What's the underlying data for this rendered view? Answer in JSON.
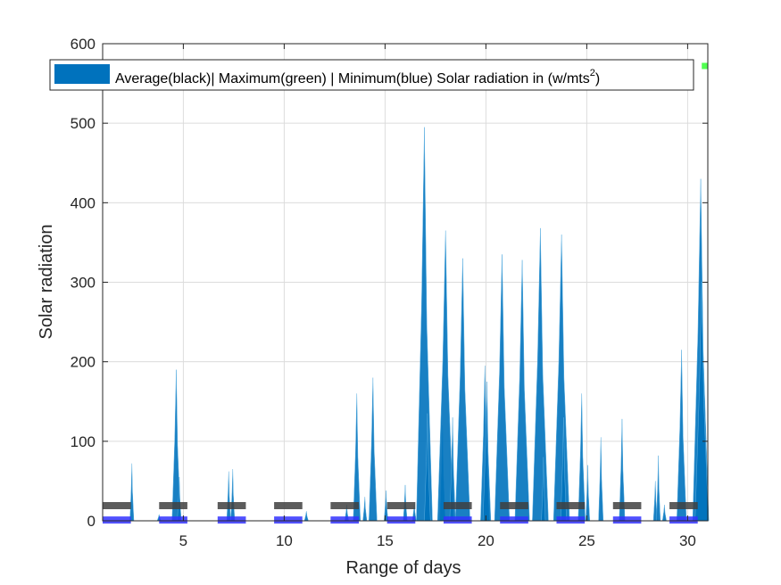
{
  "chart_data": {
    "type": "area",
    "xlabel": "Range of days",
    "ylabel": "Solar radiation",
    "xlim": [
      1,
      31
    ],
    "ylim": [
      0,
      600
    ],
    "xticks": [
      5,
      10,
      15,
      20,
      25,
      30
    ],
    "yticks": [
      0,
      100,
      200,
      300,
      400,
      500,
      600
    ],
    "grid": true,
    "legend": {
      "position": "top",
      "text_before_sup": "Average(black)| Maximum(green) | Minimum(blue) Solar radiation in (w/mts",
      "superscript": "2",
      "text_after_sup": ")"
    },
    "colors": {
      "area": "#0072BD",
      "average": "#404040",
      "maximum": "#33ff33",
      "minimum": "#3333ff"
    },
    "series": [
      {
        "name": "Solar radiation",
        "peaks": [
          {
            "x": 2.45,
            "y": 72
          },
          {
            "x": 3.8,
            "y": 8
          },
          {
            "x": 4.65,
            "y": 190
          },
          {
            "x": 4.8,
            "y": 55
          },
          {
            "x": 7.25,
            "y": 62
          },
          {
            "x": 7.45,
            "y": 65
          },
          {
            "x": 11.1,
            "y": 12
          },
          {
            "x": 13.1,
            "y": 20
          },
          {
            "x": 13.6,
            "y": 160
          },
          {
            "x": 14.0,
            "y": 30
          },
          {
            "x": 14.4,
            "y": 180
          },
          {
            "x": 15.05,
            "y": 38
          },
          {
            "x": 16.0,
            "y": 45
          },
          {
            "x": 16.45,
            "y": 22
          },
          {
            "x": 16.95,
            "y": 495
          },
          {
            "x": 17.1,
            "y": 135
          },
          {
            "x": 17.85,
            "y": 120
          },
          {
            "x": 18.0,
            "y": 365
          },
          {
            "x": 18.35,
            "y": 130
          },
          {
            "x": 18.85,
            "y": 330
          },
          {
            "x": 19.95,
            "y": 195
          },
          {
            "x": 20.05,
            "y": 175
          },
          {
            "x": 20.8,
            "y": 335
          },
          {
            "x": 21.8,
            "y": 328
          },
          {
            "x": 22.7,
            "y": 368
          },
          {
            "x": 22.85,
            "y": 80
          },
          {
            "x": 23.75,
            "y": 360
          },
          {
            "x": 23.85,
            "y": 130
          },
          {
            "x": 24.75,
            "y": 160
          },
          {
            "x": 25.05,
            "y": 70
          },
          {
            "x": 25.7,
            "y": 105
          },
          {
            "x": 26.75,
            "y": 128
          },
          {
            "x": 28.4,
            "y": 50
          },
          {
            "x": 28.55,
            "y": 82
          },
          {
            "x": 28.85,
            "y": 20
          },
          {
            "x": 29.7,
            "y": 215
          },
          {
            "x": 30.65,
            "y": 430
          },
          {
            "x": 30.7,
            "y": 300
          }
        ]
      },
      {
        "name": "Average",
        "segments": [
          {
            "x": 1.0,
            "x2": 2.4,
            "y": 19
          },
          {
            "x": 3.8,
            "x2": 5.2,
            "y": 19
          },
          {
            "x": 6.7,
            "x2": 8.1,
            "y": 19
          },
          {
            "x": 9.5,
            "x2": 10.9,
            "y": 19
          },
          {
            "x": 12.3,
            "x2": 13.7,
            "y": 19
          },
          {
            "x": 15.1,
            "x2": 16.5,
            "y": 19
          },
          {
            "x": 17.9,
            "x2": 19.3,
            "y": 19
          },
          {
            "x": 20.7,
            "x2": 22.1,
            "y": 19
          },
          {
            "x": 23.5,
            "x2": 24.9,
            "y": 19
          },
          {
            "x": 26.3,
            "x2": 27.7,
            "y": 19
          },
          {
            "x": 29.1,
            "x2": 30.5,
            "y": 19
          }
        ]
      },
      {
        "name": "Minimum",
        "segments": [
          {
            "x": 1.0,
            "x2": 2.4,
            "y": 1
          },
          {
            "x": 3.8,
            "x2": 5.2,
            "y": 1
          },
          {
            "x": 6.7,
            "x2": 8.1,
            "y": 1
          },
          {
            "x": 9.5,
            "x2": 10.9,
            "y": 1
          },
          {
            "x": 12.3,
            "x2": 13.7,
            "y": 1
          },
          {
            "x": 15.1,
            "x2": 16.5,
            "y": 1
          },
          {
            "x": 17.9,
            "x2": 19.3,
            "y": 1
          },
          {
            "x": 20.7,
            "x2": 22.1,
            "y": 1
          },
          {
            "x": 23.5,
            "x2": 24.9,
            "y": 1
          },
          {
            "x": 26.3,
            "x2": 27.7,
            "y": 1
          },
          {
            "x": 29.1,
            "x2": 30.5,
            "y": 1
          }
        ]
      },
      {
        "name": "Maximum",
        "segments": [
          {
            "x": 30.7,
            "x2": 31.0,
            "y": 572
          }
        ]
      }
    ]
  }
}
